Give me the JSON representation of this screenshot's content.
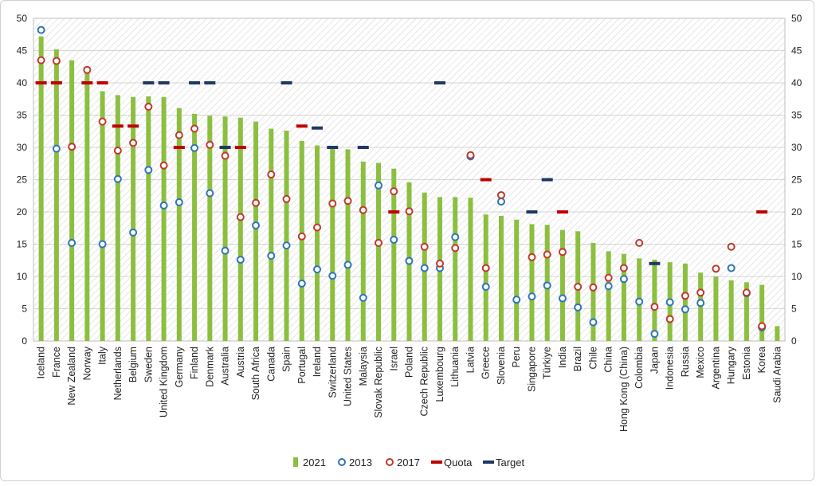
{
  "chart_data": {
    "type": "bar",
    "title": "",
    "xlabel": "",
    "ylabel": "",
    "ylim": [
      0,
      50
    ],
    "yticks": [
      0,
      5,
      10,
      15,
      20,
      25,
      30,
      35,
      40,
      45,
      50
    ],
    "legend_position": "bottom-center",
    "categories": [
      "Iceland",
      "France",
      "New Zealand",
      "Norway",
      "Italy",
      "Netherlands",
      "Belgium",
      "Sweden",
      "United Kingdom",
      "Germany",
      "Finland",
      "Denmark",
      "Australia",
      "Austria",
      "South Africa",
      "Canada",
      "Spain",
      "Portugal",
      "Ireland",
      "Switzerland",
      "United States",
      "Malaysia",
      "Slovak Republic",
      "Israel",
      "Poland",
      "Czech Republic",
      "Luxembourg",
      "Lithuania",
      "Latvia",
      "Greece",
      "Slovenia",
      "Peru",
      "Singapore",
      "Türkiye",
      "India",
      "Brazil",
      "Chile",
      "China",
      "Hong Kong (China)",
      "Colombia",
      "Japan",
      "Indonesia",
      "Russia",
      "Mexico",
      "Argentina",
      "Hungary",
      "Estonia",
      "Korea",
      "Saudi Arabia"
    ],
    "series": [
      {
        "name": "2021",
        "kind": "bar",
        "color": "#8cbf3f",
        "values": [
          47.2,
          45.2,
          43.5,
          41.5,
          38.7,
          38.1,
          37.8,
          37.9,
          37.8,
          36.1,
          35.2,
          34.9,
          34.8,
          34.6,
          34.0,
          32.9,
          32.6,
          31.0,
          30.3,
          30.1,
          29.7,
          27.8,
          27.6,
          26.7,
          24.6,
          23.0,
          22.3,
          22.3,
          22.2,
          19.6,
          19.4,
          18.8,
          18.1,
          18.0,
          17.2,
          17.0,
          15.2,
          13.9,
          13.5,
          12.8,
          12.6,
          12.2,
          12.0,
          10.6,
          10.0,
          9.4,
          9.1,
          8.7,
          2.3
        ]
      },
      {
        "name": "2013",
        "kind": "marker",
        "color": "#2e75b6",
        "values": [
          48.2,
          29.8,
          15.2,
          null,
          15.0,
          25.1,
          16.8,
          26.5,
          21.0,
          21.5,
          29.9,
          22.9,
          14.0,
          12.6,
          17.9,
          13.2,
          14.8,
          8.9,
          11.1,
          10.1,
          11.8,
          6.7,
          24.1,
          15.7,
          12.4,
          11.3,
          11.3,
          16.1,
          28.6,
          8.4,
          21.6,
          6.4,
          6.9,
          8.6,
          6.6,
          5.2,
          2.9,
          8.5,
          9.6,
          6.1,
          1.1,
          6.0,
          4.9,
          5.9,
          null,
          11.3,
          7.4,
          2.1,
          null
        ]
      },
      {
        "name": "2017",
        "kind": "marker",
        "color": "#c0392b",
        "values": [
          43.5,
          43.4,
          30.1,
          42.0,
          34.0,
          29.5,
          30.7,
          36.3,
          27.2,
          31.9,
          32.9,
          30.4,
          28.7,
          19.2,
          21.4,
          25.8,
          22.0,
          16.2,
          17.6,
          21.3,
          21.7,
          20.3,
          15.2,
          23.2,
          20.1,
          14.6,
          12.0,
          14.4,
          28.8,
          11.3,
          22.6,
          null,
          13.0,
          13.4,
          13.8,
          8.4,
          8.3,
          9.8,
          11.3,
          15.2,
          5.3,
          3.4,
          7.0,
          7.5,
          11.2,
          14.6,
          7.5,
          2.3,
          null
        ]
      },
      {
        "name": "Quota",
        "kind": "dash",
        "color": "#c00000",
        "values": [
          40,
          40,
          null,
          40,
          40,
          33.3,
          33.3,
          null,
          null,
          30,
          null,
          null,
          null,
          30,
          null,
          null,
          null,
          33.3,
          null,
          null,
          null,
          null,
          null,
          20,
          null,
          null,
          null,
          null,
          null,
          25,
          null,
          null,
          null,
          null,
          20,
          null,
          null,
          null,
          null,
          null,
          null,
          null,
          null,
          null,
          null,
          null,
          null,
          20,
          null
        ]
      },
      {
        "name": "Target",
        "kind": "dash",
        "color": "#1f3864",
        "values": [
          null,
          null,
          null,
          null,
          null,
          null,
          null,
          40,
          40,
          null,
          40,
          40,
          30,
          null,
          null,
          null,
          40,
          null,
          33,
          30,
          null,
          30,
          null,
          null,
          null,
          null,
          40,
          null,
          null,
          null,
          null,
          null,
          20,
          25,
          null,
          null,
          null,
          null,
          null,
          null,
          12,
          null,
          null,
          null,
          null,
          null,
          null,
          null,
          null
        ]
      }
    ]
  }
}
